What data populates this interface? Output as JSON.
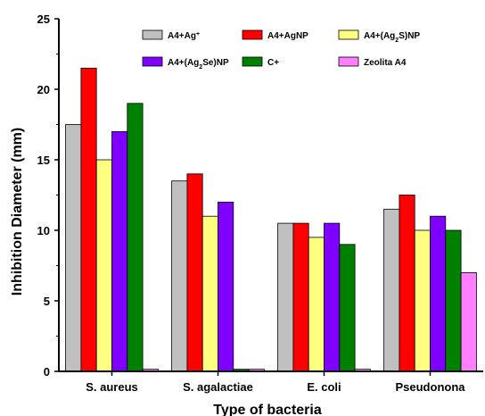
{
  "chart_data": {
    "type": "bar",
    "xlabel": "Type of bacteria",
    "ylabel": "Inhibition Diameter (mm)",
    "ylim": [
      0,
      25
    ],
    "yticks": [
      0,
      5,
      10,
      15,
      20,
      25
    ],
    "grid": false,
    "legend_position": "top",
    "categories": [
      "S. aureus",
      "S. agalactiae",
      "E. coli",
      "Pseudonona"
    ],
    "series": [
      {
        "name": "A4+Ag",
        "name_sup": "+",
        "name_tail": "",
        "color": "#c0c0c0",
        "values": [
          17.5,
          13.5,
          10.5,
          11.5
        ]
      },
      {
        "name": "A4+AgNP",
        "name_sup": "",
        "name_tail": "",
        "color": "#ff0000",
        "values": [
          21.5,
          14.0,
          10.5,
          12.5
        ]
      },
      {
        "name": "A4+(Ag",
        "name_sub": "2",
        "name_tail": "S)NP",
        "color": "#ffff80",
        "values": [
          15.0,
          11.0,
          9.5,
          10.0
        ]
      },
      {
        "name": "A4+(Ag",
        "name_sub": "2",
        "name_tail": "Se)NP",
        "color": "#8000ff",
        "values": [
          17.0,
          12.0,
          10.5,
          11.0
        ]
      },
      {
        "name": "C+",
        "name_sup": "",
        "name_tail": "",
        "color": "#008000",
        "values": [
          19.0,
          0.15,
          9.0,
          10.0
        ]
      },
      {
        "name": "Zeolita A4",
        "name_sup": "",
        "name_tail": "",
        "color": "#ff80ff",
        "values": [
          0.15,
          0.15,
          0.15,
          7.0
        ]
      }
    ]
  }
}
